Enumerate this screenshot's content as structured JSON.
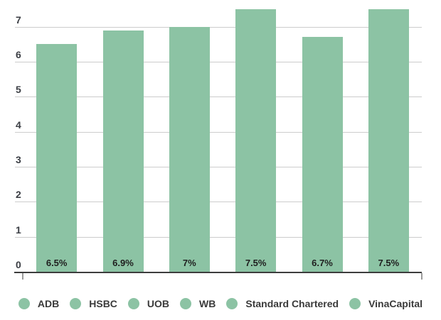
{
  "chart_data": {
    "type": "bar",
    "categories": [
      "ADB",
      "HSBC",
      "UOB",
      "WB",
      "Standard Chartered",
      "VinaCapital"
    ],
    "values": [
      6.5,
      6.9,
      7,
      7.5,
      6.7,
      7.5
    ],
    "bar_labels": [
      "6.5%",
      "6.9%",
      "7%",
      "7.5%",
      "6.7%",
      "7.5%"
    ],
    "y_ticks": [
      0,
      1,
      2,
      3,
      4,
      5,
      6,
      7
    ],
    "ylim": [
      0,
      7.5
    ],
    "title": "",
    "xlabel": "",
    "ylabel": "",
    "grid": true,
    "legend_position": "bottom"
  },
  "colors": {
    "bar": "#8cc3a4",
    "gridline": "#cccccc",
    "axis_line": "#3d3d3d",
    "tick": "#9b9b9b",
    "y_label": "#3b3e44",
    "bar_label": "#1f1f1f",
    "legend_label": "#3a3a3a",
    "background": "#ffffff"
  }
}
